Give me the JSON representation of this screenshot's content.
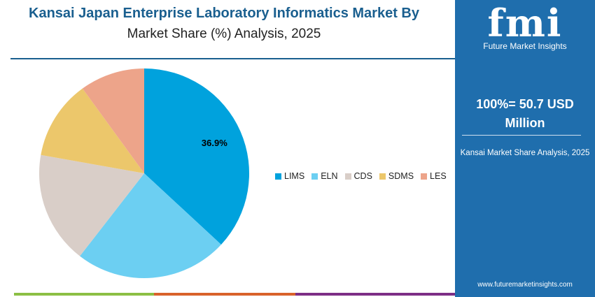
{
  "title_line1": "Kansai Japan Enterprise Laboratory Informatics Market By",
  "title_line2": "Market Share (%) Analysis, 2025",
  "panel": {
    "logo_mark": "fmi",
    "logo_text": "Future Market Insights",
    "total_line1": "100%= 50.7 USD",
    "total_line2": "Million",
    "subtitle": "Kansai Market Share Analysis, 2025",
    "url": "www.futuremarketinsights.com",
    "color": "#1f6ead"
  },
  "chart_data": {
    "type": "pie",
    "start_angle": "12 o'clock, clockwise",
    "legend_position": "right",
    "slices": [
      {
        "name": "LIMS",
        "value": 36.9,
        "color": "#00a2dd",
        "label": "36.9%"
      },
      {
        "name": "ELN",
        "value": 23.6,
        "color": "#6ccff2",
        "label": ""
      },
      {
        "name": "CDS",
        "value": 17.3,
        "color": "#d9cec8",
        "label": ""
      },
      {
        "name": "SDMS",
        "value": 12.2,
        "color": "#ecc76b",
        "label": ""
      },
      {
        "name": "LES",
        "value": 10.0,
        "color": "#eda48a",
        "label": ""
      }
    ]
  }
}
